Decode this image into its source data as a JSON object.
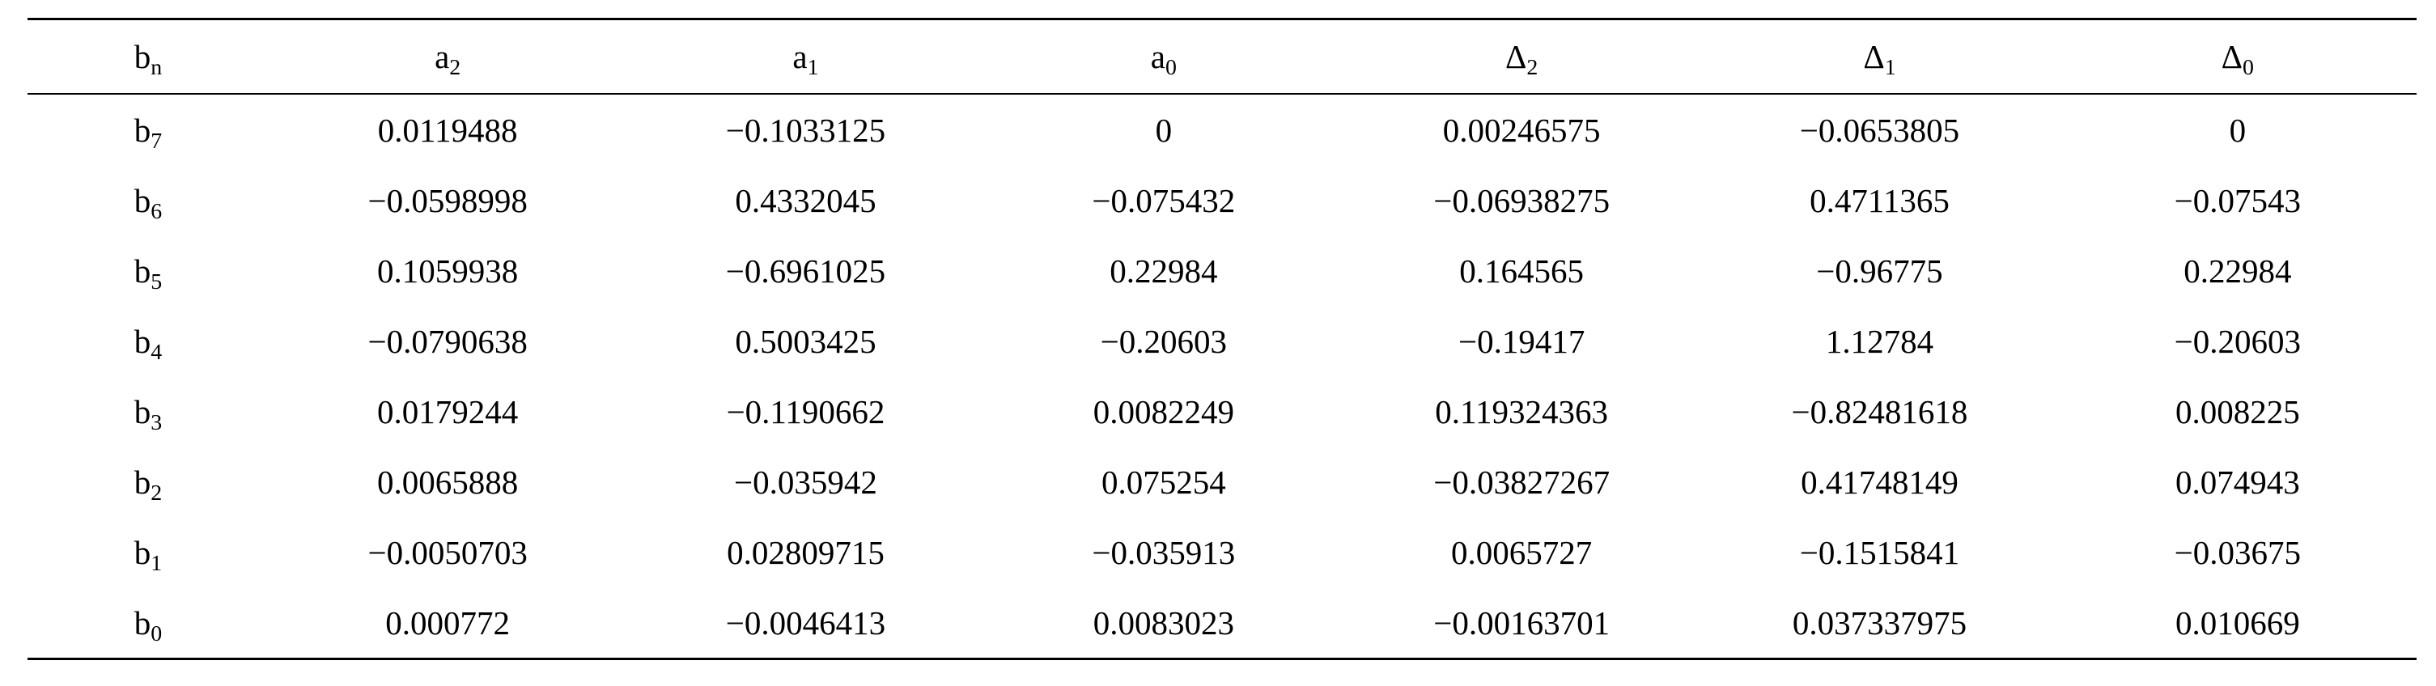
{
  "table": {
    "headers": [
      {
        "base": "b",
        "sub": "n"
      },
      {
        "base": "a",
        "sub": "2"
      },
      {
        "base": "a",
        "sub": "1"
      },
      {
        "base": "a",
        "sub": "0"
      },
      {
        "base": "Δ",
        "sub": "2"
      },
      {
        "base": "Δ",
        "sub": "1"
      },
      {
        "base": "Δ",
        "sub": "0"
      }
    ],
    "rows": [
      {
        "label": {
          "base": "b",
          "sub": "7"
        },
        "cells": [
          "0.0119488",
          "−0.1033125",
          "0",
          "0.00246575",
          "−0.0653805",
          "0"
        ]
      },
      {
        "label": {
          "base": "b",
          "sub": "6"
        },
        "cells": [
          "−0.0598998",
          "0.4332045",
          "−0.075432",
          "−0.06938275",
          "0.4711365",
          "−0.07543"
        ]
      },
      {
        "label": {
          "base": "b",
          "sub": "5"
        },
        "cells": [
          "0.1059938",
          "−0.6961025",
          "0.22984",
          "0.164565",
          "−0.96775",
          "0.22984"
        ]
      },
      {
        "label": {
          "base": "b",
          "sub": "4"
        },
        "cells": [
          "−0.0790638",
          "0.5003425",
          "−0.20603",
          "−0.19417",
          "1.12784",
          "−0.20603"
        ]
      },
      {
        "label": {
          "base": "b",
          "sub": "3"
        },
        "cells": [
          "0.0179244",
          "−0.1190662",
          "0.0082249",
          "0.119324363",
          "−0.82481618",
          "0.008225"
        ]
      },
      {
        "label": {
          "base": "b",
          "sub": "2"
        },
        "cells": [
          "0.0065888",
          "−0.035942",
          "0.075254",
          "−0.03827267",
          "0.41748149",
          "0.074943"
        ]
      },
      {
        "label": {
          "base": "b",
          "sub": "1"
        },
        "cells": [
          "−0.0050703",
          "0.02809715",
          "−0.035913",
          "0.0065727",
          "−0.1515841",
          "−0.03675"
        ]
      },
      {
        "label": {
          "base": "b",
          "sub": "0"
        },
        "cells": [
          "0.000772",
          "−0.0046413",
          "0.0083023",
          "−0.00163701",
          "0.037337975",
          "0.010669"
        ]
      }
    ]
  }
}
